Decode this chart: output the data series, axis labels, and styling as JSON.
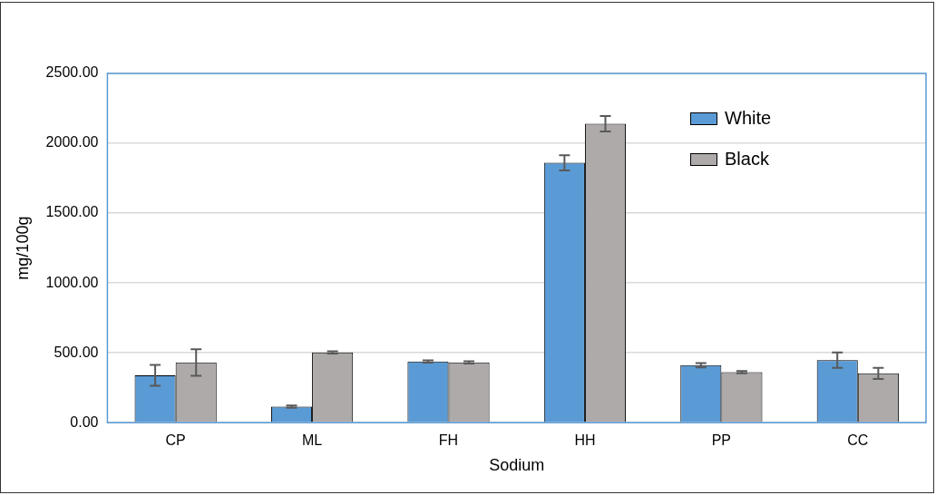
{
  "chart_data": {
    "type": "bar",
    "xlabel": "Sodium",
    "ylabel": "mg/100g",
    "categories": [
      "CP",
      "ML",
      "FH",
      "HH",
      "PP",
      "CC"
    ],
    "series": [
      {
        "name": "White",
        "color": "#5b9bd5",
        "values": [
          339,
          115,
          438,
          1860,
          411,
          447
        ],
        "errors": [
          75,
          8,
          8,
          55,
          15,
          55
        ]
      },
      {
        "name": "Black",
        "color": "#aeaaaa",
        "values": [
          431,
          503,
          431,
          2140,
          361,
          353
        ],
        "errors": [
          95,
          8,
          8,
          55,
          8,
          40
        ]
      }
    ],
    "ylim": [
      0,
      2500
    ],
    "yticks": [
      {
        "value": 0,
        "label": "0.00"
      },
      {
        "value": 500,
        "label": "500.00"
      },
      {
        "value": 1000,
        "label": "1000.00"
      },
      {
        "value": 1500,
        "label": "1500.00"
      },
      {
        "value": 2000,
        "label": "2000.00"
      },
      {
        "value": 2500,
        "label": "2500.00"
      }
    ],
    "grid": "y",
    "legend": "top right"
  }
}
